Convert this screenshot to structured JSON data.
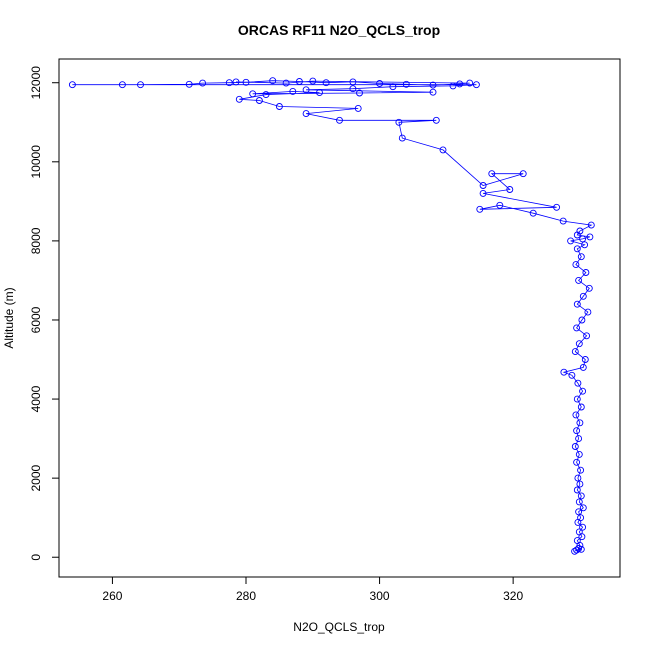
{
  "chart_data": {
    "type": "line",
    "title": "ORCAS RF11 N2O_QCLS_trop",
    "xlabel": "N2O_QCLS_trop",
    "ylabel": "Altitude (m)",
    "xlim": [
      252,
      336
    ],
    "ylim": [
      -500,
      12600
    ],
    "x_ticks": [
      260,
      280,
      300,
      320
    ],
    "y_ticks": [
      0,
      2000,
      4000,
      6000,
      8000,
      10000,
      12000
    ],
    "grid": false,
    "legend": "none",
    "series": [
      {
        "color": "#0000ff",
        "marker": "open-circle",
        "points": [
          [
            329.2,
            150
          ],
          [
            329.5,
            180
          ],
          [
            330.2,
            200
          ],
          [
            329.8,
            220
          ],
          [
            330.0,
            300
          ],
          [
            329.6,
            420
          ],
          [
            330.3,
            520
          ],
          [
            329.9,
            640
          ],
          [
            330.4,
            760
          ],
          [
            329.7,
            880
          ],
          [
            330.1,
            1000
          ],
          [
            329.8,
            1150
          ],
          [
            330.5,
            1250
          ],
          [
            329.9,
            1400
          ],
          [
            330.2,
            1550
          ],
          [
            329.6,
            1700
          ],
          [
            330.0,
            1850
          ],
          [
            329.7,
            2000
          ],
          [
            330.1,
            2200
          ],
          [
            329.5,
            2400
          ],
          [
            329.9,
            2600
          ],
          [
            329.3,
            2800
          ],
          [
            329.8,
            3000
          ],
          [
            329.5,
            3200
          ],
          [
            330.0,
            3400
          ],
          [
            329.4,
            3600
          ],
          [
            330.2,
            3800
          ],
          [
            329.6,
            4000
          ],
          [
            330.4,
            4200
          ],
          [
            329.7,
            4400
          ],
          [
            328.8,
            4600
          ],
          [
            327.6,
            4680
          ],
          [
            330.5,
            4800
          ],
          [
            330.8,
            5000
          ],
          [
            329.3,
            5200
          ],
          [
            329.9,
            5400
          ],
          [
            331.0,
            5600
          ],
          [
            329.5,
            5800
          ],
          [
            330.3,
            6000
          ],
          [
            331.2,
            6200
          ],
          [
            329.6,
            6400
          ],
          [
            330.5,
            6600
          ],
          [
            331.4,
            6800
          ],
          [
            329.8,
            7000
          ],
          [
            330.9,
            7200
          ],
          [
            329.4,
            7400
          ],
          [
            330.2,
            7600
          ],
          [
            329.6,
            7800
          ],
          [
            330.7,
            7900
          ],
          [
            328.6,
            8000
          ],
          [
            330.4,
            8050
          ],
          [
            331.5,
            8100
          ],
          [
            329.6,
            8150
          ],
          [
            330.0,
            8250
          ],
          [
            331.7,
            8400
          ],
          [
            327.5,
            8500
          ],
          [
            323.0,
            8700
          ],
          [
            318.0,
            8900
          ],
          [
            315.0,
            8800
          ],
          [
            326.5,
            8850
          ],
          [
            315.5,
            9200
          ],
          [
            319.5,
            9300
          ],
          [
            316.8,
            9700
          ],
          [
            321.5,
            9700
          ],
          [
            315.5,
            9400
          ],
          [
            309.5,
            10300
          ],
          [
            303.4,
            10600
          ],
          [
            302.9,
            11000
          ],
          [
            308.5,
            11050
          ],
          [
            294.0,
            11050
          ],
          [
            289.0,
            11220
          ],
          [
            296.8,
            11350
          ],
          [
            285.0,
            11400
          ],
          [
            282.0,
            11550
          ],
          [
            279.0,
            11580
          ],
          [
            283.0,
            11700
          ],
          [
            291.0,
            11750
          ],
          [
            287.0,
            11780
          ],
          [
            281.0,
            11720
          ],
          [
            297.0,
            11740
          ],
          [
            308.0,
            11760
          ],
          [
            289.0,
            11820
          ],
          [
            296.0,
            11850
          ],
          [
            302.0,
            11900
          ],
          [
            311.0,
            11920
          ],
          [
            314.5,
            11950
          ],
          [
            254.0,
            11950
          ],
          [
            261.5,
            11950
          ],
          [
            264.2,
            11950
          ],
          [
            271.5,
            11960
          ],
          [
            273.5,
            11990
          ],
          [
            277.5,
            12000
          ],
          [
            280.0,
            12010
          ],
          [
            284.0,
            12050
          ],
          [
            288.0,
            12030
          ],
          [
            292.0,
            12000
          ],
          [
            296.0,
            12020
          ],
          [
            300.0,
            11980
          ],
          [
            304.0,
            11960
          ],
          [
            308.0,
            11940
          ],
          [
            312.0,
            11970
          ],
          [
            313.5,
            11990
          ],
          [
            290.0,
            12040
          ],
          [
            286.0,
            11990
          ],
          [
            278.5,
            12020
          ]
        ]
      }
    ]
  }
}
